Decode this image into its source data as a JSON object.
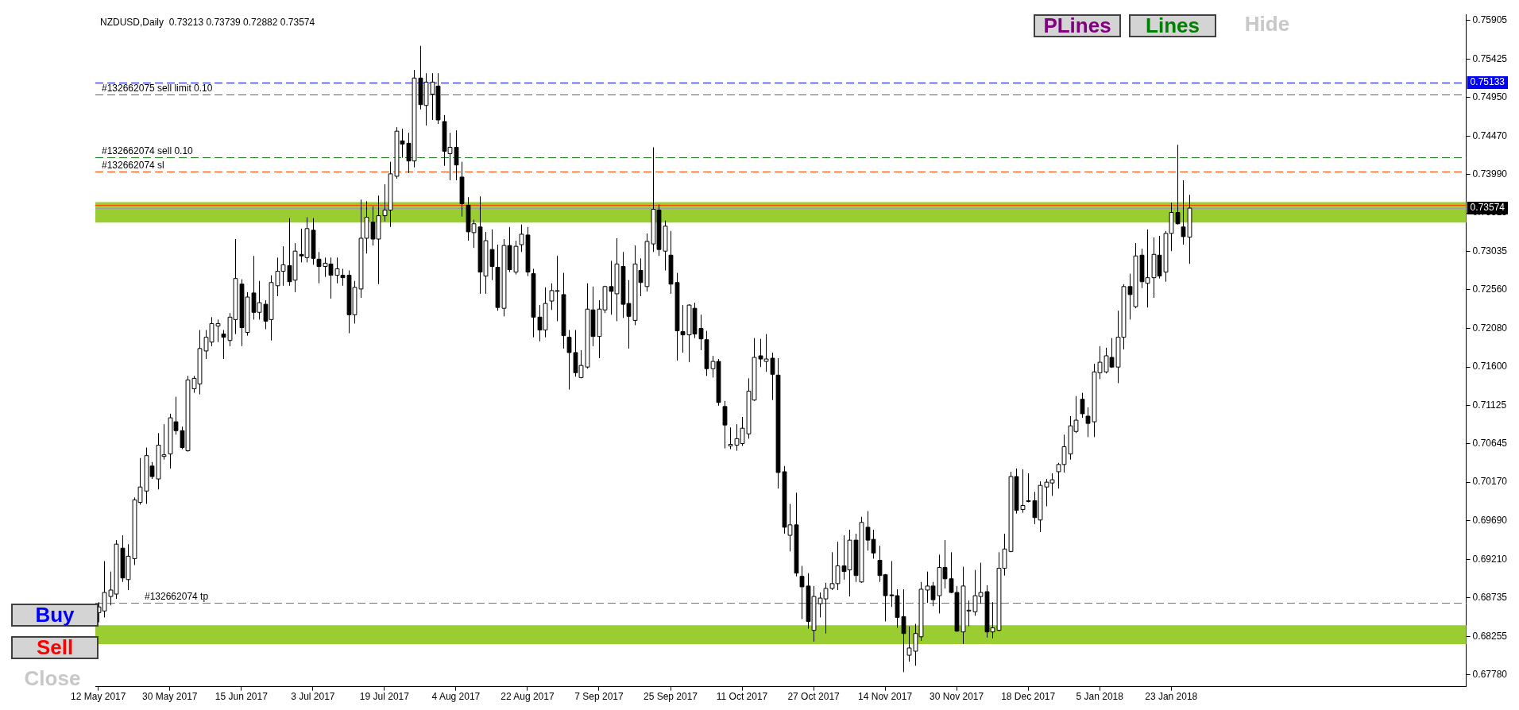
{
  "chart_data": {
    "type": "candlestick",
    "title": "NZDUSD,Daily  0.73213 0.73739 0.72882 0.73574",
    "categories": [
      "12 May 2017",
      null,
      null,
      null,
      null,
      null,
      null,
      null,
      null,
      null,
      null,
      null,
      "30 May 2017",
      null,
      null,
      null,
      null,
      null,
      null,
      null,
      null,
      null,
      null,
      null,
      "15 Jun 2017",
      null,
      null,
      null,
      null,
      null,
      null,
      null,
      null,
      null,
      null,
      null,
      "3 Jul 2017",
      null,
      null,
      null,
      null,
      null,
      null,
      null,
      null,
      null,
      null,
      null,
      "19 Jul 2017",
      null,
      null,
      null,
      null,
      null,
      null,
      null,
      null,
      null,
      null,
      null,
      "4 Aug 2017",
      null,
      null,
      null,
      null,
      null,
      null,
      null,
      null,
      null,
      null,
      null,
      "22 Aug 2017",
      null,
      null,
      null,
      null,
      null,
      null,
      null,
      null,
      null,
      null,
      null,
      "7 Sep 2017",
      null,
      null,
      null,
      null,
      null,
      null,
      null,
      null,
      null,
      null,
      null,
      "25 Sep 2017",
      null,
      null,
      null,
      null,
      null,
      null,
      null,
      null,
      null,
      null,
      null,
      "11 Oct 2017",
      null,
      null,
      null,
      null,
      null,
      null,
      null,
      null,
      null,
      null,
      null,
      "27 Oct 2017",
      null,
      null,
      null,
      null,
      null,
      null,
      null,
      null,
      null,
      null,
      null,
      "14 Nov 2017",
      null,
      null,
      null,
      null,
      null,
      null,
      null,
      null,
      null,
      null,
      null,
      "30 Nov 2017",
      null,
      null,
      null,
      null,
      null,
      null,
      null,
      null,
      null,
      null,
      null,
      "18 Dec 2017",
      null,
      null,
      null,
      null,
      null,
      null,
      null,
      null,
      null,
      null,
      null,
      "5 Jan 2018",
      null,
      null,
      null,
      null,
      null,
      null,
      null,
      null,
      null,
      null,
      null,
      "23 Jan 2018",
      null,
      null,
      null,
      null,
      null,
      null,
      null,
      null,
      null,
      null,
      null,
      null,
      null,
      null,
      null,
      null,
      null,
      null,
      null,
      null,
      null,
      null,
      null,
      null,
      null,
      null,
      null,
      null,
      null,
      null,
      null,
      null,
      null,
      null,
      null,
      null,
      null,
      null,
      null,
      null,
      null,
      null,
      null,
      null,
      null,
      null,
      null,
      null,
      null
    ],
    "ohlc": [
      [
        0.6855,
        0.6868,
        0.6843,
        0.6862
      ],
      [
        0.6857,
        0.6919,
        0.6849,
        0.688
      ],
      [
        0.6875,
        0.6906,
        0.6864,
        0.6883
      ],
      [
        0.6878,
        0.6945,
        0.6872,
        0.694
      ],
      [
        0.6935,
        0.6951,
        0.6893,
        0.6898
      ],
      [
        0.6896,
        0.694,
        0.6883,
        0.6925
      ],
      [
        0.6922,
        0.6998,
        0.6914,
        0.6995
      ],
      [
        0.6992,
        0.7047,
        0.6989,
        0.7011
      ],
      [
        0.7006,
        0.706,
        0.699,
        0.705
      ],
      [
        0.7037,
        0.7042,
        0.7021,
        0.7024
      ],
      [
        0.7021,
        0.7078,
        0.7008,
        0.7063
      ],
      [
        0.7049,
        0.7089,
        0.7045,
        0.7051
      ],
      [
        0.7052,
        0.7102,
        0.7034,
        0.7097
      ],
      [
        0.7092,
        0.7123,
        0.7076,
        0.7081
      ],
      [
        0.7081,
        0.7086,
        0.7058,
        0.706
      ],
      [
        0.7056,
        0.7149,
        0.7055,
        0.7144
      ],
      [
        0.7133,
        0.7149,
        0.7128,
        0.7146
      ],
      [
        0.7139,
        0.7206,
        0.7126,
        0.7183
      ],
      [
        0.718,
        0.7206,
        0.717,
        0.7197
      ],
      [
        0.7191,
        0.7222,
        0.7186,
        0.7214
      ],
      [
        0.7211,
        0.7219,
        0.7191,
        0.7214
      ],
      [
        0.7201,
        0.7206,
        0.717,
        0.7197
      ],
      [
        0.7193,
        0.7227,
        0.7186,
        0.7222
      ],
      [
        0.7219,
        0.7319,
        0.7201,
        0.727
      ],
      [
        0.7263,
        0.7269,
        0.7186,
        0.7209
      ],
      [
        0.7203,
        0.7253,
        0.7199,
        0.7247
      ],
      [
        0.7252,
        0.7298,
        0.7219,
        0.7228
      ],
      [
        0.7228,
        0.7267,
        0.7219,
        0.724
      ],
      [
        0.7238,
        0.7243,
        0.7207,
        0.7217
      ],
      [
        0.7219,
        0.7274,
        0.7193,
        0.7265
      ],
      [
        0.7261,
        0.7296,
        0.7248,
        0.7279
      ],
      [
        0.7279,
        0.731,
        0.7261,
        0.7287
      ],
      [
        0.7286,
        0.7345,
        0.7261,
        0.7266
      ],
      [
        0.7268,
        0.7314,
        0.7253,
        0.7304
      ],
      [
        0.73,
        0.7332,
        0.729,
        0.7298
      ],
      [
        0.7296,
        0.7346,
        0.729,
        0.7332
      ],
      [
        0.733,
        0.7345,
        0.7287,
        0.7295
      ],
      [
        0.7294,
        0.7303,
        0.7264,
        0.7285
      ],
      [
        0.7285,
        0.7296,
        0.7272,
        0.7289
      ],
      [
        0.7288,
        0.7296,
        0.7245,
        0.7274
      ],
      [
        0.7274,
        0.7296,
        0.7264,
        0.7282
      ],
      [
        0.7274,
        0.7282,
        0.7261,
        0.7271
      ],
      [
        0.7274,
        0.728,
        0.7202,
        0.7225
      ],
      [
        0.7225,
        0.7267,
        0.7214,
        0.7259
      ],
      [
        0.7257,
        0.7368,
        0.7246,
        0.732
      ],
      [
        0.732,
        0.7366,
        0.7301,
        0.7346
      ],
      [
        0.734,
        0.736,
        0.7311,
        0.7319
      ],
      [
        0.7319,
        0.7373,
        0.7263,
        0.7348
      ],
      [
        0.7348,
        0.7387,
        0.7341,
        0.7355
      ],
      [
        0.7355,
        0.7415,
        0.7334,
        0.74
      ],
      [
        0.7397,
        0.7458,
        0.7394,
        0.7453
      ],
      [
        0.7441,
        0.7456,
        0.742,
        0.7437
      ],
      [
        0.7438,
        0.7451,
        0.7401,
        0.7416
      ],
      [
        0.7416,
        0.7529,
        0.7408,
        0.7519
      ],
      [
        0.7519,
        0.7559,
        0.748,
        0.7486
      ],
      [
        0.7485,
        0.7525,
        0.746,
        0.7514
      ],
      [
        0.7499,
        0.7525,
        0.7467,
        0.7514
      ],
      [
        0.7509,
        0.7525,
        0.7462,
        0.7467
      ],
      [
        0.7465,
        0.7473,
        0.741,
        0.7428
      ],
      [
        0.7425,
        0.7451,
        0.7392,
        0.7433
      ],
      [
        0.7433,
        0.7454,
        0.7392,
        0.7411
      ],
      [
        0.7396,
        0.7415,
        0.7347,
        0.7363
      ],
      [
        0.7361,
        0.7371,
        0.7317,
        0.7328
      ],
      [
        0.7327,
        0.7343,
        0.7308,
        0.7338
      ],
      [
        0.7334,
        0.7372,
        0.7251,
        0.7278
      ],
      [
        0.7273,
        0.7328,
        0.7251,
        0.7317
      ],
      [
        0.7306,
        0.7331,
        0.7268,
        0.7285
      ],
      [
        0.7284,
        0.7312,
        0.723,
        0.7234
      ],
      [
        0.7233,
        0.7319,
        0.7223,
        0.7311
      ],
      [
        0.7311,
        0.7334,
        0.7278,
        0.7281
      ],
      [
        0.7278,
        0.7317,
        0.7275,
        0.731
      ],
      [
        0.7312,
        0.7337,
        0.7303,
        0.7325
      ],
      [
        0.7324,
        0.7334,
        0.7273,
        0.7278
      ],
      [
        0.7276,
        0.7282,
        0.7197,
        0.7222
      ],
      [
        0.7222,
        0.7237,
        0.7192,
        0.7206
      ],
      [
        0.7206,
        0.7259,
        0.7197,
        0.7239
      ],
      [
        0.7242,
        0.7264,
        0.7231,
        0.7255
      ],
      [
        0.7254,
        0.7298,
        0.7217,
        0.7255
      ],
      [
        0.725,
        0.7277,
        0.7183,
        0.7199
      ],
      [
        0.7197,
        0.7206,
        0.7132,
        0.7178
      ],
      [
        0.7178,
        0.7206,
        0.7148,
        0.7153
      ],
      [
        0.7147,
        0.7181,
        0.7146,
        0.7162
      ],
      [
        0.716,
        0.7264,
        0.7158,
        0.7232
      ],
      [
        0.7231,
        0.726,
        0.7186,
        0.7198
      ],
      [
        0.7198,
        0.7243,
        0.7171,
        0.7232
      ],
      [
        0.7231,
        0.7261,
        0.7227,
        0.726
      ],
      [
        0.726,
        0.7292,
        0.7225,
        0.7254
      ],
      [
        0.7251,
        0.732,
        0.7217,
        0.7288
      ],
      [
        0.7285,
        0.7303,
        0.7221,
        0.7238
      ],
      [
        0.7239,
        0.7268,
        0.7183,
        0.7223
      ],
      [
        0.7218,
        0.7311,
        0.7212,
        0.7288
      ],
      [
        0.728,
        0.7295,
        0.7248,
        0.7265
      ],
      [
        0.726,
        0.7326,
        0.7254,
        0.7316
      ],
      [
        0.7313,
        0.7433,
        0.7303,
        0.7356
      ],
      [
        0.7355,
        0.7362,
        0.7298,
        0.7306
      ],
      [
        0.7304,
        0.7342,
        0.728,
        0.7335
      ],
      [
        0.7299,
        0.7329,
        0.7251,
        0.7263
      ],
      [
        0.7265,
        0.7277,
        0.7168,
        0.7205
      ],
      [
        0.7204,
        0.7237,
        0.7178,
        0.72
      ],
      [
        0.72,
        0.7238,
        0.7166,
        0.7237
      ],
      [
        0.7233,
        0.724,
        0.7196,
        0.7201
      ],
      [
        0.7208,
        0.7225,
        0.7181,
        0.7195
      ],
      [
        0.7194,
        0.7205,
        0.7149,
        0.7158
      ],
      [
        0.7158,
        0.7174,
        0.7147,
        0.7167
      ],
      [
        0.7167,
        0.717,
        0.7112,
        0.7116
      ],
      [
        0.7111,
        0.7118,
        0.7059,
        0.7088
      ],
      [
        0.7062,
        0.7085,
        0.7058,
        0.7064
      ],
      [
        0.7063,
        0.7089,
        0.7056,
        0.7071
      ],
      [
        0.7065,
        0.7098,
        0.7062,
        0.7084
      ],
      [
        0.7077,
        0.7146,
        0.7071,
        0.713
      ],
      [
        0.7119,
        0.7196,
        0.7118,
        0.7172
      ],
      [
        0.7174,
        0.7195,
        0.716,
        0.717
      ],
      [
        0.7167,
        0.7201,
        0.7154,
        0.717
      ],
      [
        0.7171,
        0.7178,
        0.7119,
        0.7151
      ],
      [
        0.715,
        0.7171,
        0.7009,
        0.7029
      ],
      [
        0.703,
        0.7037,
        0.6953,
        0.6961
      ],
      [
        0.6951,
        0.699,
        0.6931,
        0.6964
      ],
      [
        0.6964,
        0.7004,
        0.69,
        0.6904
      ],
      [
        0.69,
        0.6913,
        0.6847,
        0.6887
      ],
      [
        0.6888,
        0.6904,
        0.6835,
        0.6844
      ],
      [
        0.6833,
        0.6888,
        0.6819,
        0.6875
      ],
      [
        0.6866,
        0.688,
        0.6849,
        0.6873
      ],
      [
        0.6872,
        0.6892,
        0.6829,
        0.6885
      ],
      [
        0.6885,
        0.693,
        0.6883,
        0.6891
      ],
      [
        0.6891,
        0.6943,
        0.6883,
        0.6913
      ],
      [
        0.6913,
        0.6951,
        0.6896,
        0.6906
      ],
      [
        0.6908,
        0.6958,
        0.6875,
        0.6945
      ],
      [
        0.6945,
        0.6953,
        0.6893,
        0.6901
      ],
      [
        0.6893,
        0.6974,
        0.6892,
        0.6967
      ],
      [
        0.6961,
        0.6981,
        0.6932,
        0.6945
      ],
      [
        0.6946,
        0.6958,
        0.6922,
        0.6929
      ],
      [
        0.692,
        0.6938,
        0.6893,
        0.6901
      ],
      [
        0.6902,
        0.6903,
        0.6844,
        0.6876
      ],
      [
        0.6877,
        0.6919,
        0.6862,
        0.6876
      ],
      [
        0.6876,
        0.6884,
        0.6836,
        0.6849
      ],
      [
        0.685,
        0.6884,
        0.6781,
        0.6829
      ],
      [
        0.6802,
        0.6838,
        0.6794,
        0.6811
      ],
      [
        0.6807,
        0.6841,
        0.6789,
        0.6829
      ],
      [
        0.6825,
        0.6893,
        0.682,
        0.6884
      ],
      [
        0.6883,
        0.6906,
        0.6867,
        0.6888
      ],
      [
        0.6888,
        0.6893,
        0.6863,
        0.6871
      ],
      [
        0.6876,
        0.6927,
        0.6854,
        0.6911
      ],
      [
        0.6911,
        0.6945,
        0.6885,
        0.6897
      ],
      [
        0.6897,
        0.693,
        0.6879,
        0.688
      ],
      [
        0.688,
        0.6888,
        0.6831,
        0.6832
      ],
      [
        0.6831,
        0.6912,
        0.6816,
        0.6888
      ],
      [
        0.6858,
        0.687,
        0.6838,
        0.6858
      ],
      [
        0.6856,
        0.6908,
        0.6851,
        0.6876
      ],
      [
        0.6875,
        0.6917,
        0.6866,
        0.688
      ],
      [
        0.6881,
        0.6889,
        0.6824,
        0.6831
      ],
      [
        0.6831,
        0.6868,
        0.6823,
        0.6836
      ],
      [
        0.6833,
        0.693,
        0.6832,
        0.691
      ],
      [
        0.691,
        0.6953,
        0.6901,
        0.6934
      ],
      [
        0.6931,
        0.703,
        0.693,
        0.7024
      ],
      [
        0.7024,
        0.7034,
        0.6978,
        0.6982
      ],
      [
        0.6983,
        0.7033,
        0.6979,
        0.6988
      ],
      [
        0.6994,
        0.7028,
        0.6992,
        0.6994
      ],
      [
        0.6994,
        0.7005,
        0.6965,
        0.6973
      ],
      [
        0.697,
        0.7018,
        0.6955,
        0.7013
      ],
      [
        0.7011,
        0.7021,
        0.6987,
        0.7017
      ],
      [
        0.7016,
        0.7028,
        0.7,
        0.702
      ],
      [
        0.703,
        0.7041,
        0.7009,
        0.7039
      ],
      [
        0.7039,
        0.7076,
        0.7029,
        0.7061
      ],
      [
        0.7052,
        0.7099,
        0.7045,
        0.7087
      ],
      [
        0.708,
        0.7124,
        0.7078,
        0.7094
      ],
      [
        0.712,
        0.7128,
        0.7097,
        0.7102
      ],
      [
        0.7099,
        0.711,
        0.7073,
        0.709
      ],
      [
        0.7092,
        0.7164,
        0.7073,
        0.7154
      ],
      [
        0.7153,
        0.7186,
        0.7145,
        0.7166
      ],
      [
        0.7154,
        0.7184,
        0.7152,
        0.7174
      ],
      [
        0.7172,
        0.7196,
        0.7159,
        0.716
      ],
      [
        0.716,
        0.723,
        0.714,
        0.7197
      ],
      [
        0.7197,
        0.7263,
        0.7182,
        0.726
      ],
      [
        0.726,
        0.7276,
        0.7219,
        0.725
      ],
      [
        0.7235,
        0.7314,
        0.7233,
        0.7298
      ],
      [
        0.7299,
        0.7307,
        0.7258,
        0.7266
      ],
      [
        0.7264,
        0.7331,
        0.7234,
        0.7271
      ],
      [
        0.7271,
        0.7321,
        0.7246,
        0.73
      ],
      [
        0.7299,
        0.7323,
        0.727,
        0.7273
      ],
      [
        0.7278,
        0.7329,
        0.7266,
        0.7326
      ],
      [
        0.7326,
        0.7364,
        0.7304,
        0.7352
      ],
      [
        0.7352,
        0.7436,
        0.7337,
        0.7338
      ],
      [
        0.7334,
        0.7392,
        0.7312,
        0.7322
      ],
      [
        0.73213,
        0.73739,
        0.72882,
        0.73574
      ],
      null,
      null,
      null,
      null,
      null,
      null,
      null,
      null,
      null,
      null,
      null,
      null,
      null,
      null,
      null,
      null,
      null,
      null,
      null,
      null,
      null,
      null,
      null,
      null,
      null,
      null,
      null,
      null,
      null,
      null,
      null,
      null,
      null,
      null,
      null,
      null,
      null,
      null,
      null,
      null,
      null,
      null,
      null,
      null,
      null,
      null
    ],
    "ylim": [
      0.6763,
      0.7598
    ],
    "yticks": [
      0.75905,
      0.75425,
      {
        "value": 0.7495,
        "label": "0.74950"
      },
      {
        "value": 0.7447,
        "label": "0.74470"
      },
      {
        "value": 0.7399,
        "label": "0.73990"
      },
      0.73515,
      0.73035,
      {
        "value": 0.7256,
        "label": "0.72560"
      },
      {
        "value": 0.7208,
        "label": "0.72080"
      },
      {
        "value": 0.716,
        "label": "0.71600"
      },
      0.71125,
      0.70645,
      {
        "value": 0.7017,
        "label": "0.70170"
      },
      {
        "value": 0.6969,
        "label": "0.69690"
      },
      {
        "value": 0.6921,
        "label": "0.69210"
      },
      0.68735,
      0.68255,
      {
        "value": 0.6778,
        "label": "0.67780"
      }
    ],
    "bands": [
      {
        "axis": "y",
        "from": 0.6816,
        "to": 0.68394,
        "color": "#9acd32"
      },
      {
        "axis": "y",
        "from": 0.73395,
        "to": 0.73648,
        "color": "#9acd32"
      }
    ],
    "ref_lines": [
      {
        "axis": "y",
        "value": 0.75133,
        "label": "0.75133",
        "color": "#0000ff",
        "line_style": "dashed"
      },
      {
        "axis": "y",
        "value": 0.74983,
        "label": "#132662075 sell limit 0.10",
        "color": "#228b22",
        "line_style": "dashed"
      },
      {
        "axis": "y",
        "value": 0.74203,
        "label": "#132662074 sell 0.10",
        "color": "#228b22",
        "line_style": "dashed"
      },
      {
        "axis": "y",
        "value": 0.74028,
        "label": "#132662074 sl",
        "color": "#ff4500",
        "line_style": "dashed"
      },
      {
        "axis": "y",
        "value": 0.7361,
        "label": null,
        "color": "#ff4500",
        "line_style": "solid"
      },
      {
        "axis": "y",
        "value": 0.73574,
        "label": "0.73574",
        "color": "#a0a0a0",
        "line_style": "solid"
      },
      {
        "axis": "y",
        "value": 0.68671,
        "label": "#132662074 tp",
        "color": "#ff4500",
        "line_style": "dashed"
      }
    ],
    "annotations": [
      "PLines",
      "Lines",
      "Hide",
      "Buy",
      "Sell",
      "Close"
    ],
    "grid": false,
    "legend": false
  }
}
